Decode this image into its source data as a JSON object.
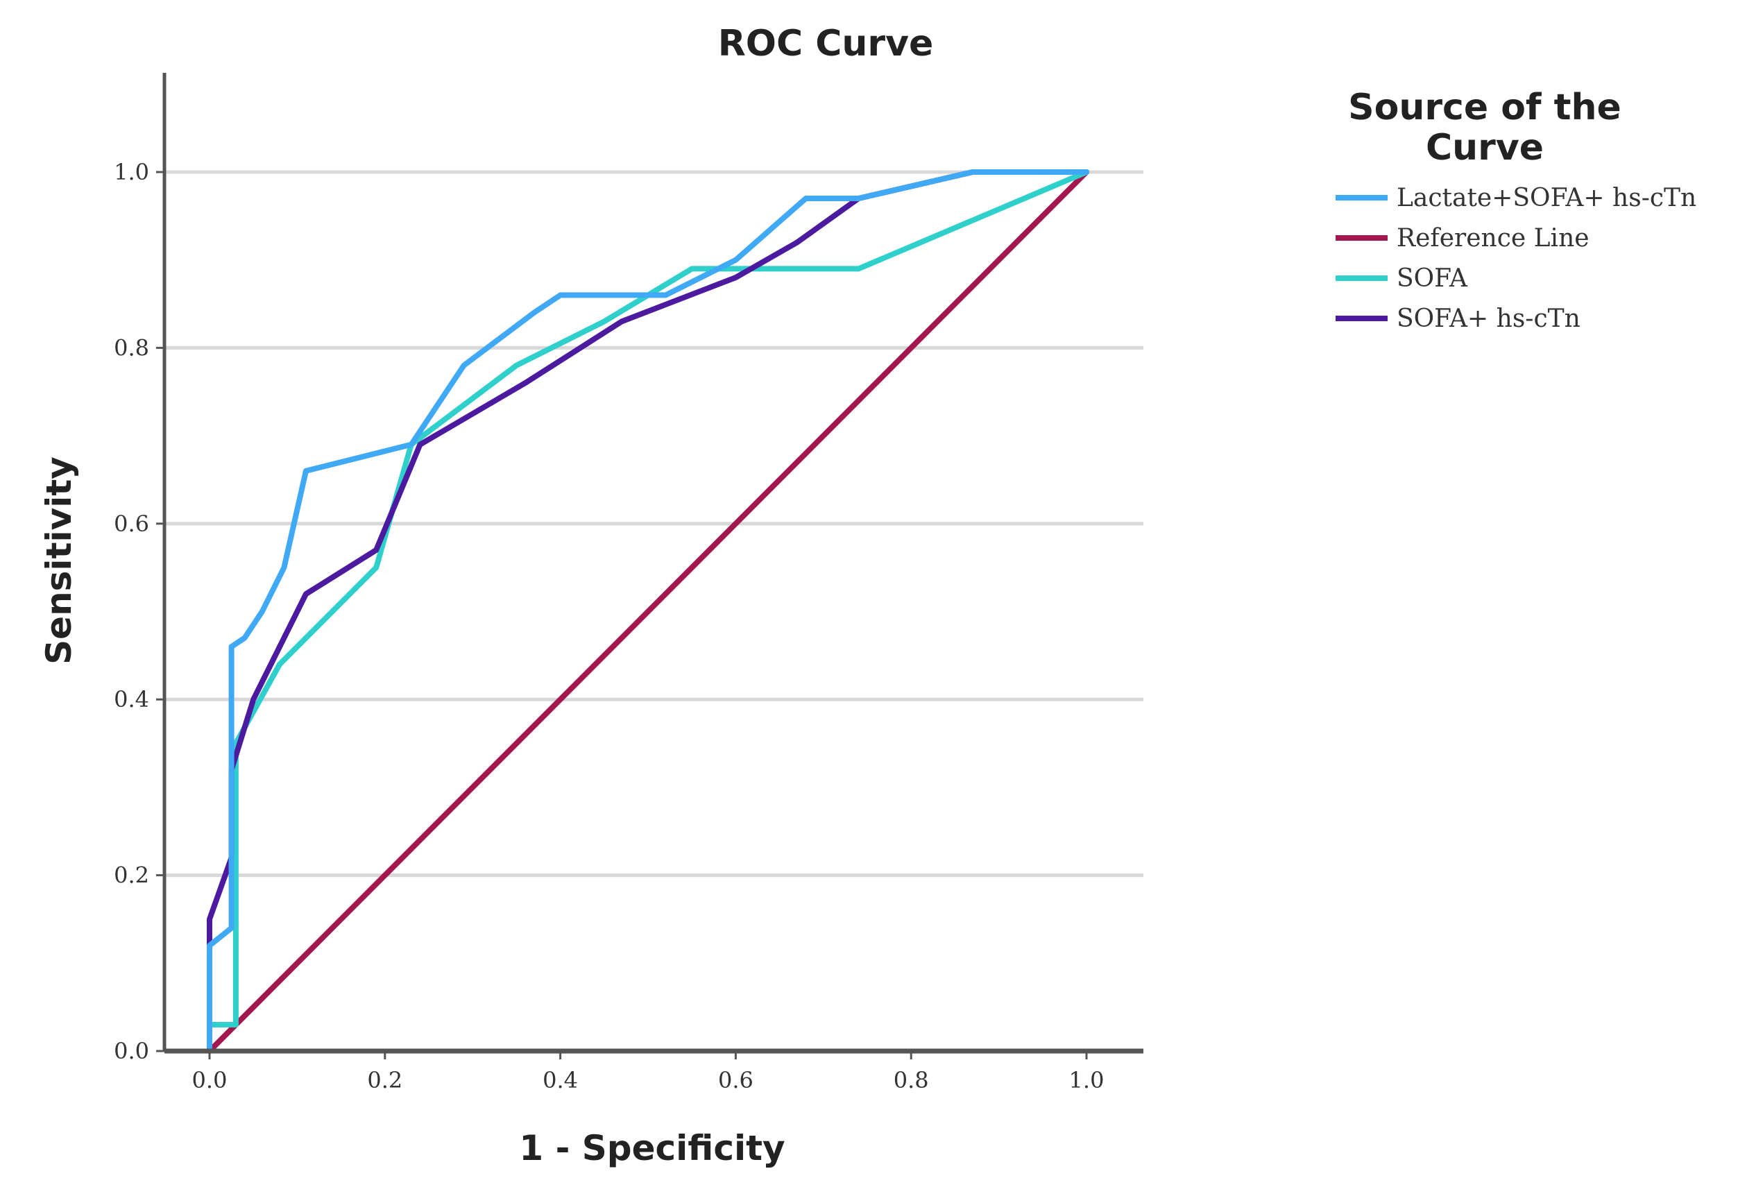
{
  "chart_data": {
    "type": "line",
    "title": "ROC Curve",
    "xlabel": "1 - Specificity",
    "ylabel": "Sensitivity",
    "xlim": [
      0,
      1
    ],
    "ylim": [
      0,
      1.1
    ],
    "x_ticks": [
      "0.0",
      "0.2",
      "0.4",
      "0.6",
      "0.8",
      "1.0"
    ],
    "y_ticks": [
      "0.0",
      "0.2",
      "0.4",
      "0.6",
      "0.8",
      "1.0"
    ],
    "grid": "horizontal",
    "legend": {
      "title_lines": [
        "Source of the",
        "Curve"
      ],
      "placement": "right"
    },
    "series": [
      {
        "name": "Lactate+SOFA+ hs-cTn",
        "color": "#3fa9f5",
        "points": [
          [
            0,
            0
          ],
          [
            0,
            0.12
          ],
          [
            0.025,
            0.14
          ],
          [
            0.025,
            0.46
          ],
          [
            0.04,
            0.47
          ],
          [
            0.06,
            0.5
          ],
          [
            0.085,
            0.55
          ],
          [
            0.11,
            0.66
          ],
          [
            0.23,
            0.69
          ],
          [
            0.29,
            0.78
          ],
          [
            0.37,
            0.84
          ],
          [
            0.4,
            0.86
          ],
          [
            0.52,
            0.86
          ],
          [
            0.6,
            0.9
          ],
          [
            0.68,
            0.97
          ],
          [
            0.74,
            0.97
          ],
          [
            0.87,
            1.0
          ],
          [
            1.0,
            1.0
          ]
        ]
      },
      {
        "name": "Reference Line",
        "color": "#a3174f",
        "points": [
          [
            0,
            0
          ],
          [
            1,
            1
          ]
        ]
      },
      {
        "name": "SOFA",
        "color": "#2fd0cc",
        "points": [
          [
            0,
            0
          ],
          [
            0,
            0.03
          ],
          [
            0.03,
            0.03
          ],
          [
            0.03,
            0.35
          ],
          [
            0.08,
            0.44
          ],
          [
            0.12,
            0.48
          ],
          [
            0.19,
            0.55
          ],
          [
            0.23,
            0.69
          ],
          [
            0.35,
            0.78
          ],
          [
            0.45,
            0.83
          ],
          [
            0.55,
            0.89
          ],
          [
            0.66,
            0.89
          ],
          [
            0.74,
            0.89
          ],
          [
            1.0,
            1.0
          ]
        ]
      },
      {
        "name": "SOFA+ hs-cTn",
        "color": "#4b1a9e",
        "points": [
          [
            0,
            0
          ],
          [
            0,
            0.15
          ],
          [
            0.025,
            0.22
          ],
          [
            0.025,
            0.32
          ],
          [
            0.05,
            0.4
          ],
          [
            0.11,
            0.52
          ],
          [
            0.19,
            0.57
          ],
          [
            0.24,
            0.69
          ],
          [
            0.36,
            0.76
          ],
          [
            0.47,
            0.83
          ],
          [
            0.6,
            0.88
          ],
          [
            0.67,
            0.92
          ],
          [
            0.74,
            0.97
          ],
          [
            0.87,
            1.0
          ],
          [
            1.0,
            1.0
          ]
        ]
      }
    ]
  }
}
